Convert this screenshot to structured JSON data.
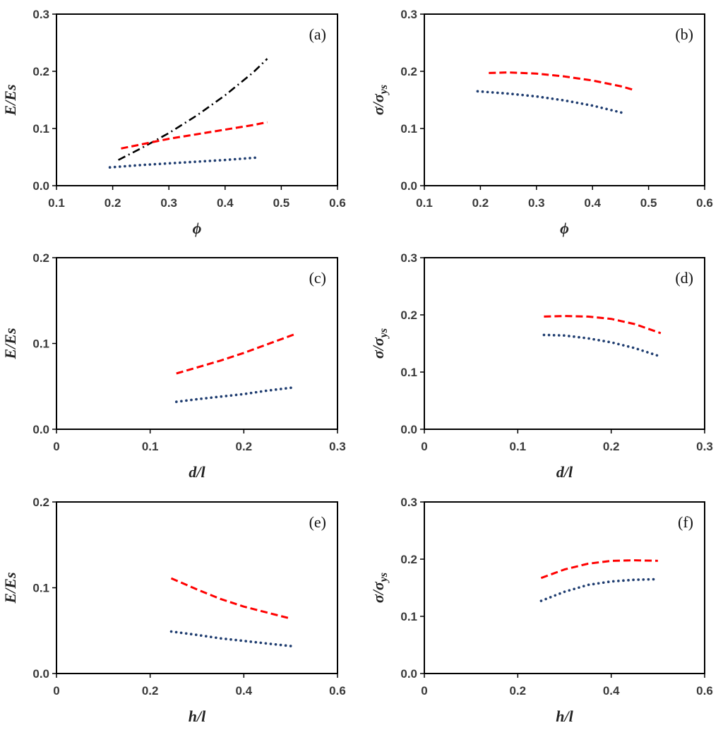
{
  "chart_data": [
    {
      "panel": "(a)",
      "type": "line",
      "xlabel": "ϕ",
      "ylabel": "E/Es",
      "xlim": [
        0.1,
        0.6
      ],
      "ylim": [
        0.0,
        0.3
      ],
      "xticks": [
        "0.1",
        "0.2",
        "0.3",
        "0.4",
        "0.5",
        "0.6"
      ],
      "yticks": [
        "0.0",
        "0.1",
        "0.2",
        "0.3"
      ],
      "grid": false,
      "series": [
        {
          "style": "dash-dot",
          "color": "#000000",
          "x": [
            0.21,
            0.25,
            0.3,
            0.35,
            0.4,
            0.45,
            0.475
          ],
          "y": [
            0.045,
            0.065,
            0.092,
            0.123,
            0.158,
            0.198,
            0.222
          ]
        },
        {
          "style": "dashed",
          "color": "#ff0000",
          "x": [
            0.215,
            0.25,
            0.3,
            0.35,
            0.4,
            0.45,
            0.475
          ],
          "y": [
            0.065,
            0.072,
            0.082,
            0.09,
            0.098,
            0.106,
            0.111
          ]
        },
        {
          "style": "dotted",
          "color": "#1f3d70",
          "x": [
            0.195,
            0.25,
            0.3,
            0.35,
            0.4,
            0.455
          ],
          "y": [
            0.032,
            0.036,
            0.039,
            0.042,
            0.045,
            0.049
          ]
        }
      ]
    },
    {
      "panel": "(b)",
      "type": "line",
      "xlabel": "ϕ",
      "ylabel": "σ/σys",
      "xlim": [
        0.1,
        0.6
      ],
      "ylim": [
        0.0,
        0.3
      ],
      "xticks": [
        "0.1",
        "0.2",
        "0.3",
        "0.4",
        "0.5",
        "0.6"
      ],
      "yticks": [
        "0.0",
        "0.1",
        "0.2",
        "0.3"
      ],
      "grid": false,
      "series": [
        {
          "style": "dashed",
          "color": "#ff0000",
          "x": [
            0.215,
            0.25,
            0.3,
            0.35,
            0.4,
            0.45,
            0.475
          ],
          "y": [
            0.197,
            0.198,
            0.196,
            0.191,
            0.184,
            0.174,
            0.167
          ]
        },
        {
          "style": "dotted",
          "color": "#1f3d70",
          "x": [
            0.195,
            0.25,
            0.3,
            0.35,
            0.4,
            0.455
          ],
          "y": [
            0.165,
            0.161,
            0.156,
            0.149,
            0.14,
            0.127
          ]
        }
      ]
    },
    {
      "panel": "(c)",
      "type": "line",
      "xlabel": "d/l",
      "ylabel": "E/Es",
      "xlim": [
        0,
        0.3
      ],
      "ylim": [
        0.0,
        0.2
      ],
      "xticks": [
        "0",
        "0.1",
        "0.2",
        "0.3"
      ],
      "yticks": [
        "0.0",
        "0.1",
        "0.2"
      ],
      "grid": false,
      "series": [
        {
          "style": "dashed",
          "color": "#ff0000",
          "x": [
            0.128,
            0.15,
            0.175,
            0.2,
            0.225,
            0.255
          ],
          "y": [
            0.065,
            0.072,
            0.08,
            0.089,
            0.099,
            0.111
          ]
        },
        {
          "style": "dotted",
          "color": "#1f3d70",
          "x": [
            0.128,
            0.15,
            0.175,
            0.2,
            0.225,
            0.255
          ],
          "y": [
            0.032,
            0.035,
            0.038,
            0.041,
            0.045,
            0.049
          ]
        }
      ]
    },
    {
      "panel": "(d)",
      "type": "line",
      "xlabel": "d/l",
      "ylabel": "σ/σys",
      "xlim": [
        0,
        0.3
      ],
      "ylim": [
        0.0,
        0.3
      ],
      "xticks": [
        "0",
        "0.1",
        "0.2",
        "0.3"
      ],
      "yticks": [
        "0.0",
        "0.1",
        "0.2",
        "0.3"
      ],
      "grid": false,
      "series": [
        {
          "style": "dashed",
          "color": "#ff0000",
          "x": [
            0.128,
            0.15,
            0.175,
            0.2,
            0.225,
            0.253
          ],
          "y": [
            0.197,
            0.198,
            0.197,
            0.193,
            0.184,
            0.168
          ]
        },
        {
          "style": "dotted",
          "color": "#1f3d70",
          "x": [
            0.128,
            0.15,
            0.175,
            0.2,
            0.225,
            0.253
          ],
          "y": [
            0.165,
            0.164,
            0.159,
            0.152,
            0.142,
            0.127
          ]
        }
      ]
    },
    {
      "panel": "(e)",
      "type": "line",
      "xlabel": "h/l",
      "ylabel": "E/Es",
      "xlim": [
        0,
        0.6
      ],
      "ylim": [
        0.0,
        0.2
      ],
      "xticks": [
        "0",
        "0.2",
        "0.4",
        "0.6"
      ],
      "yticks": [
        "0.0",
        "0.1",
        "0.2"
      ],
      "grid": false,
      "series": [
        {
          "style": "dashed",
          "color": "#ff0000",
          "x": [
            0.245,
            0.3,
            0.35,
            0.4,
            0.45,
            0.5
          ],
          "y": [
            0.111,
            0.098,
            0.087,
            0.078,
            0.071,
            0.064
          ]
        },
        {
          "style": "dotted",
          "color": "#1f3d70",
          "x": [
            0.245,
            0.3,
            0.35,
            0.4,
            0.45,
            0.5
          ],
          "y": [
            0.049,
            0.045,
            0.041,
            0.038,
            0.035,
            0.032
          ]
        }
      ]
    },
    {
      "panel": "(f)",
      "type": "line",
      "xlabel": "h/l",
      "ylabel": "σ/σys",
      "xlim": [
        0,
        0.6
      ],
      "ylim": [
        0.0,
        0.3
      ],
      "xticks": [
        "0",
        "0.2",
        "0.4",
        "0.6"
      ],
      "yticks": [
        "0.0",
        "0.1",
        "0.2",
        "0.3"
      ],
      "grid": false,
      "series": [
        {
          "style": "dashed",
          "color": "#ff0000",
          "x": [
            0.25,
            0.3,
            0.35,
            0.4,
            0.45,
            0.5
          ],
          "y": [
            0.167,
            0.182,
            0.192,
            0.197,
            0.198,
            0.197
          ]
        },
        {
          "style": "dotted",
          "color": "#1f3d70",
          "x": [
            0.25,
            0.3,
            0.35,
            0.4,
            0.45,
            0.5
          ],
          "y": [
            0.127,
            0.143,
            0.155,
            0.161,
            0.164,
            0.165
          ]
        }
      ]
    }
  ]
}
